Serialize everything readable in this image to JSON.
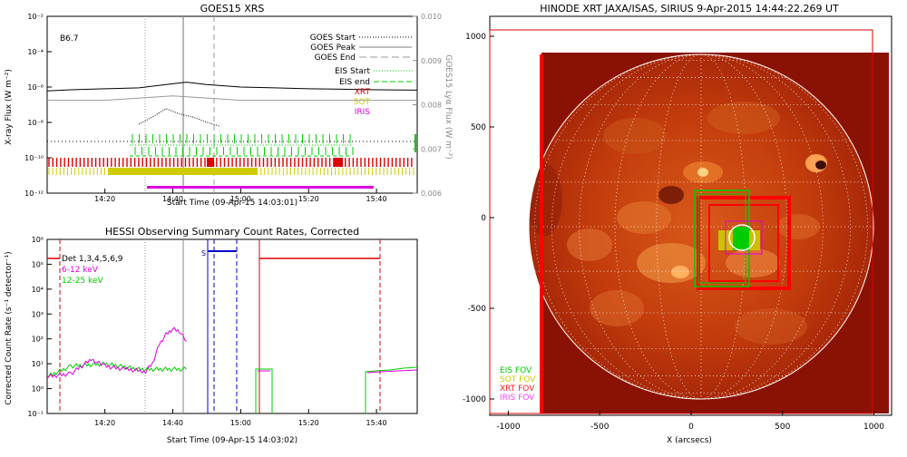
{
  "chart_data": [
    {
      "type": "line",
      "title": "GOES15 XRS",
      "xlabel": "Start Time (09-Apr-15 14:03:01)",
      "ylabel": "X-ray Flux (W m⁻²)",
      "ylabel_right": "GOES15 Lyα Flux (W m⁻²)",
      "class_label": "B6.7",
      "x_ticks": [
        "14:20",
        "14:40",
        "15:00",
        "15:20",
        "15:40"
      ],
      "y_ticks": [
        "10⁻²",
        "10⁻⁴",
        "10⁻⁶",
        "10⁻⁸",
        "10⁻¹⁰",
        "10⁻¹²"
      ],
      "y_right_ticks": [
        "0.010",
        "0.009",
        "0.008",
        "0.007",
        "0.006"
      ],
      "legend": [
        {
          "label": "GOES Start",
          "color": "#000000",
          "style": "dotted"
        },
        {
          "label": "GOES Peak",
          "color": "#999999",
          "style": "solid"
        },
        {
          "label": "GOES End",
          "color": "#999999",
          "style": "dashed"
        },
        {
          "label": "EIS Start",
          "color": "#00cc00",
          "style": "dotted"
        },
        {
          "label": "EIS end",
          "color": "#00cc00",
          "style": "dashed"
        },
        {
          "label": "XRT",
          "color": "#dd0000",
          "style": "text"
        },
        {
          "label": "SOT",
          "color": "#cccc00",
          "style": "text"
        },
        {
          "label": "IRIS",
          "color": "#dd00dd",
          "style": "text"
        }
      ],
      "series": [
        {
          "x": [
            "14:03",
            "14:10",
            "14:20",
            "14:30",
            "14:38",
            "14:44",
            "14:50",
            "15:00",
            "15:10",
            "15:20",
            "15:30",
            "15:40",
            "15:52"
          ],
          "y": [
            6e-07,
            7e-07,
            8e-07,
            9e-07,
            1.4e-06,
            1.9e-06,
            1.4e-06,
            1e-06,
            9e-07,
            8e-07,
            7.5e-07,
            7e-07,
            6.7e-07
          ],
          "color": "#000000"
        },
        {
          "x": [
            "14:03",
            "14:20",
            "14:40",
            "15:00",
            "15:20",
            "15:40",
            "15:52"
          ],
          "y": [
            0.0081,
            0.0081,
            0.0082,
            0.0081,
            0.0081,
            0.0081,
            0.0081
          ],
          "color": "#999999",
          "axis": "right"
        },
        {
          "x": [
            "14:30",
            "14:34",
            "14:38",
            "14:42",
            "14:46",
            "14:50",
            "14:54"
          ],
          "y": [
            8e-09,
            2e-08,
            6e-08,
            3e-08,
            2e-08,
            1e-08,
            6e-09
          ],
          "color": "#000000",
          "style": "dotted"
        }
      ],
      "markers": {
        "goes_start": "14:32",
        "goes_peak": "14:44",
        "goes_end": "14:54"
      }
    },
    {
      "type": "line",
      "title": "HESSI Observing Summary Count Rates, Corrected",
      "xlabel": "Start Time (09-Apr-15 14:03:02)",
      "ylabel": "Corrected Count Rate (s⁻¹ detector⁻¹)",
      "x_ticks": [
        "14:20",
        "14:40",
        "15:00",
        "15:20",
        "15:40"
      ],
      "y_ticks": [
        "10⁶",
        "10⁵",
        "10⁴",
        "10³",
        "10²",
        "10¹",
        "10⁰",
        "10⁻¹"
      ],
      "legend": [
        {
          "label": "Det 1,3,4,5,6,9",
          "color": "#000000"
        },
        {
          "label": "6-12 keV",
          "color": "#dd00dd"
        },
        {
          "label": "12-25 keV",
          "color": "#00cc00"
        }
      ],
      "s_label": "S",
      "series": [
        {
          "name": "6-12 keV",
          "color": "#dd00dd",
          "x": [
            "14:03",
            "14:10",
            "14:16",
            "14:20",
            "14:26",
            "14:32",
            "14:34",
            "14:36",
            "14:38",
            "14:40",
            "14:42",
            "14:44"
          ],
          "y": [
            3,
            4,
            15,
            8,
            6,
            5,
            10,
            60,
            150,
            250,
            200,
            80
          ]
        },
        {
          "name": "12-25 keV",
          "color": "#00cc00",
          "x": [
            "14:03",
            "14:10",
            "14:20",
            "14:30",
            "14:40",
            "14:44"
          ],
          "y": [
            3,
            8,
            10,
            6,
            6,
            6
          ]
        }
      ]
    },
    {
      "type": "heatmap",
      "title": "HINODE XRT JAXA/ISAS, SIRIUS  9-Apr-2015 14:44:22.269 UT",
      "xlabel": "X (arcsecs)",
      "x_ticks": [
        "-1000",
        "-500",
        "0",
        "500",
        "1000"
      ],
      "y_ticks": [
        "1000",
        "500",
        "0",
        "-500",
        "-1000"
      ],
      "legend": [
        {
          "label": "EIS FOV",
          "color": "#00cc00"
        },
        {
          "label": "SOT FOV",
          "color": "#cccc00"
        },
        {
          "label": "XRT FOV",
          "color": "#dd0000"
        },
        {
          "label": "IRIS FOV",
          "color": "#dd00dd"
        }
      ]
    }
  ]
}
